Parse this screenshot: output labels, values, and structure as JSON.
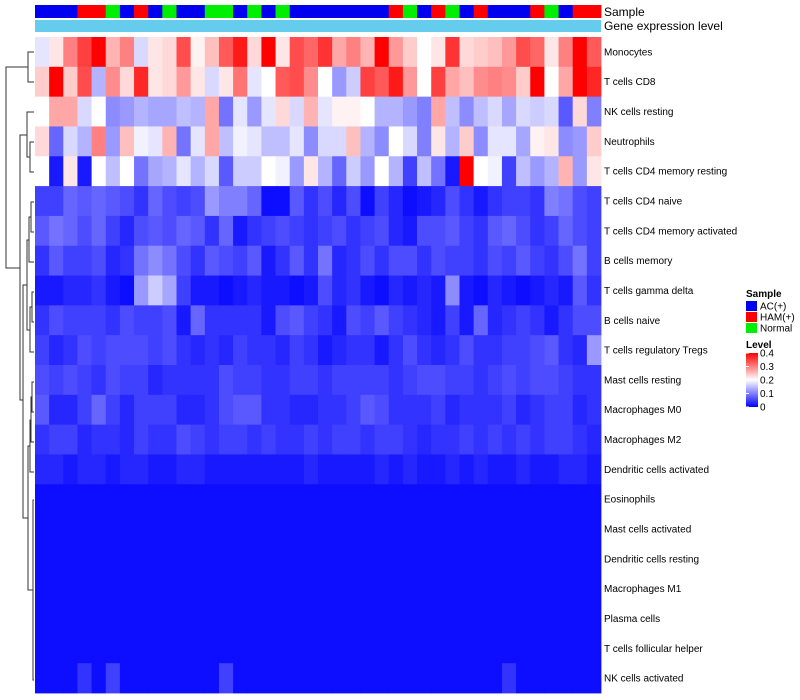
{
  "chart_data": {
    "type": "heatmap",
    "annotation_labels": {
      "sample": "Sample",
      "gene_expression": "Gene expression level"
    },
    "rows": [
      "Monocytes",
      "T cells CD8",
      "NK cells resting",
      "Neutrophils",
      "T cells CD4 memory resting",
      "T cells CD4 naive",
      "T cells CD4 memory activated",
      "B cells memory",
      "T cells gamma delta",
      "B cells naive",
      "T cells regulatory  Tregs",
      "Mast cells resting",
      "Macrophages M0",
      "Macrophages M2",
      "Dendritic cells activated",
      "Eosinophils",
      "Mast cells activated",
      "Dendritic cells resting",
      "Macrophages M1",
      "Plasma cells",
      "T cells follicular helper",
      "NK cells activated"
    ],
    "sample_groups": [
      "AC",
      "AC",
      "AC",
      "HAM",
      "HAM",
      "Normal",
      "AC",
      "HAM",
      "AC",
      "Normal",
      "AC",
      "AC",
      "Normal",
      "Normal",
      "AC",
      "Normal",
      "AC",
      "Normal",
      "AC",
      "AC",
      "AC",
      "AC",
      "AC",
      "AC",
      "AC",
      "HAM",
      "Normal",
      "AC",
      "HAM",
      "Normal",
      "AC",
      "HAM",
      "AC",
      "AC",
      "AC",
      "HAM",
      "Normal",
      "AC",
      "HAM",
      "HAM"
    ],
    "values": [
      [
        0.18,
        0.22,
        0.3,
        0.35,
        0.4,
        0.26,
        0.3,
        0.17,
        0.22,
        0.23,
        0.34,
        0.21,
        0.25,
        0.33,
        0.38,
        0.23,
        0.4,
        0.22,
        0.34,
        0.32,
        0.36,
        0.27,
        0.3,
        0.26,
        0.4,
        0.28,
        0.24,
        0.2,
        0.22,
        0.36,
        0.23,
        0.24,
        0.25,
        0.28,
        0.34,
        0.32,
        0.22,
        0.3,
        0.4,
        0.33
      ],
      [
        0.24,
        0.4,
        0.24,
        0.34,
        0.14,
        0.29,
        0.23,
        0.37,
        0.22,
        0.23,
        0.28,
        0.22,
        0.17,
        0.22,
        0.31,
        0.18,
        0.2,
        0.33,
        0.34,
        0.29,
        0.2,
        0.12,
        0.16,
        0.35,
        0.33,
        0.38,
        0.28,
        0.2,
        0.35,
        0.27,
        0.25,
        0.29,
        0.3,
        0.29,
        0.24,
        0.4,
        0.2,
        0.27,
        0.4,
        0.37
      ],
      [
        0.2,
        0.27,
        0.27,
        0.17,
        0.2,
        0.11,
        0.12,
        0.14,
        0.13,
        0.13,
        0.15,
        0.14,
        0.27,
        0.09,
        0.18,
        0.12,
        0.18,
        0.23,
        0.17,
        0.26,
        0.18,
        0.21,
        0.21,
        0.2,
        0.14,
        0.14,
        0.12,
        0.1,
        0.27,
        0.15,
        0.11,
        0.15,
        0.17,
        0.13,
        0.17,
        0.16,
        0.17,
        0.07,
        0.23,
        0.1
      ],
      [
        0.23,
        0.08,
        0.17,
        0.14,
        0.3,
        0.12,
        0.25,
        0.19,
        0.18,
        0.26,
        0.09,
        0.18,
        0.27,
        0.15,
        0.19,
        0.18,
        0.15,
        0.15,
        0.18,
        0.11,
        0.17,
        0.17,
        0.25,
        0.14,
        0.11,
        0.2,
        0.17,
        0.1,
        0.22,
        0.14,
        0.24,
        0.11,
        0.18,
        0.18,
        0.13,
        0.21,
        0.22,
        0.11,
        0.12,
        0.24
      ],
      [
        0.2,
        0.02,
        0.22,
        0.02,
        0.2,
        0.15,
        0.2,
        0.09,
        0.13,
        0.14,
        0.18,
        0.14,
        0.17,
        0.07,
        0.16,
        0.16,
        0.2,
        0.19,
        0.12,
        0.22,
        0.14,
        0.08,
        0.16,
        0.12,
        0.2,
        0.14,
        0.05,
        0.15,
        0.09,
        0.02,
        0.4,
        0.2,
        0.19,
        0.05,
        0.15,
        0.12,
        0.14,
        0.26,
        0.12,
        0.22
      ],
      [
        0.05,
        0.05,
        0.08,
        0.07,
        0.08,
        0.07,
        0.06,
        0.04,
        0.08,
        0.06,
        0.05,
        0.06,
        0.12,
        0.1,
        0.1,
        0.08,
        0.01,
        0.01,
        0.07,
        0.04,
        0.06,
        0.03,
        0.06,
        0.01,
        0.05,
        0.03,
        0.01,
        0.02,
        0.03,
        0.06,
        0.04,
        0.02,
        0.04,
        0.05,
        0.05,
        0.04,
        0.1,
        0.09,
        0.06,
        0.05
      ],
      [
        0.07,
        0.09,
        0.08,
        0.06,
        0.08,
        0.05,
        0.03,
        0.06,
        0.07,
        0.06,
        0.08,
        0.07,
        0.04,
        0.08,
        0.02,
        0.04,
        0.05,
        0.06,
        0.05,
        0.04,
        0.05,
        0.06,
        0.04,
        0.05,
        0.06,
        0.03,
        0.02,
        0.06,
        0.06,
        0.07,
        0.05,
        0.04,
        0.07,
        0.08,
        0.06,
        0.04,
        0.05,
        0.08,
        0.06,
        0.05
      ],
      [
        0.04,
        0.07,
        0.05,
        0.05,
        0.06,
        0.03,
        0.04,
        0.09,
        0.11,
        0.09,
        0.06,
        0.04,
        0.07,
        0.06,
        0.05,
        0.07,
        0.02,
        0.04,
        0.07,
        0.04,
        0.09,
        0.03,
        0.04,
        0.06,
        0.04,
        0.06,
        0.06,
        0.04,
        0.06,
        0.05,
        0.05,
        0.04,
        0.06,
        0.05,
        0.07,
        0.05,
        0.04,
        0.06,
        0.09,
        0.05
      ],
      [
        0.02,
        0.02,
        0.03,
        0.03,
        0.04,
        0.02,
        0.01,
        0.12,
        0.16,
        0.13,
        0.05,
        0.02,
        0.02,
        0.01,
        0.02,
        0.03,
        0.02,
        0.02,
        0.01,
        0.02,
        0.06,
        0.03,
        0.04,
        0.02,
        0.01,
        0.03,
        0.02,
        0.03,
        0.02,
        0.11,
        0.02,
        0.01,
        0.03,
        0.02,
        0.01,
        0.02,
        0.03,
        0.02,
        0.07,
        0.04
      ],
      [
        0.04,
        0.06,
        0.05,
        0.05,
        0.05,
        0.04,
        0.06,
        0.05,
        0.05,
        0.06,
        0.02,
        0.08,
        0.04,
        0.04,
        0.04,
        0.04,
        0.02,
        0.06,
        0.07,
        0.05,
        0.04,
        0.02,
        0.06,
        0.05,
        0.07,
        0.05,
        0.04,
        0.03,
        0.02,
        0.05,
        0.02,
        0.08,
        0.03,
        0.04,
        0.05,
        0.04,
        0.02,
        0.04,
        0.06,
        0.06
      ],
      [
        0.05,
        0.03,
        0.04,
        0.06,
        0.05,
        0.06,
        0.06,
        0.06,
        0.05,
        0.06,
        0.04,
        0.03,
        0.04,
        0.03,
        0.05,
        0.04,
        0.04,
        0.03,
        0.05,
        0.04,
        0.02,
        0.03,
        0.04,
        0.04,
        0.02,
        0.04,
        0.06,
        0.04,
        0.03,
        0.04,
        0.06,
        0.04,
        0.04,
        0.05,
        0.05,
        0.06,
        0.07,
        0.04,
        0.03,
        0.12
      ],
      [
        0.06,
        0.05,
        0.06,
        0.05,
        0.04,
        0.06,
        0.05,
        0.05,
        0.03,
        0.04,
        0.04,
        0.04,
        0.04,
        0.06,
        0.05,
        0.05,
        0.04,
        0.04,
        0.05,
        0.05,
        0.04,
        0.05,
        0.05,
        0.05,
        0.05,
        0.04,
        0.05,
        0.06,
        0.06,
        0.05,
        0.05,
        0.04,
        0.05,
        0.06,
        0.05,
        0.06,
        0.06,
        0.05,
        0.04,
        0.04
      ],
      [
        0.07,
        0.03,
        0.03,
        0.05,
        0.08,
        0.05,
        0.03,
        0.05,
        0.05,
        0.05,
        0.03,
        0.03,
        0.04,
        0.06,
        0.07,
        0.07,
        0.04,
        0.04,
        0.03,
        0.03,
        0.04,
        0.04,
        0.05,
        0.07,
        0.06,
        0.04,
        0.04,
        0.04,
        0.05,
        0.03,
        0.04,
        0.04,
        0.04,
        0.05,
        0.03,
        0.04,
        0.05,
        0.05,
        0.03,
        0.04
      ],
      [
        0.04,
        0.05,
        0.05,
        0.03,
        0.04,
        0.04,
        0.03,
        0.05,
        0.04,
        0.04,
        0.06,
        0.05,
        0.04,
        0.05,
        0.05,
        0.04,
        0.05,
        0.04,
        0.04,
        0.05,
        0.04,
        0.05,
        0.05,
        0.04,
        0.05,
        0.05,
        0.04,
        0.03,
        0.04,
        0.04,
        0.05,
        0.04,
        0.05,
        0.04,
        0.05,
        0.04,
        0.05,
        0.05,
        0.04,
        0.03
      ],
      [
        0.03,
        0.03,
        0.02,
        0.03,
        0.03,
        0.02,
        0.03,
        0.03,
        0.02,
        0.02,
        0.03,
        0.03,
        0.02,
        0.02,
        0.02,
        0.02,
        0.02,
        0.02,
        0.02,
        0.03,
        0.02,
        0.02,
        0.02,
        0.02,
        0.03,
        0.02,
        0.03,
        0.02,
        0.02,
        0.03,
        0.02,
        0.03,
        0.02,
        0.02,
        0.03,
        0.02,
        0.02,
        0.03,
        0.03,
        0.02
      ],
      [
        0.01,
        0.01,
        0.01,
        0.01,
        0.01,
        0.01,
        0.01,
        0.01,
        0.01,
        0.01,
        0.01,
        0.01,
        0.01,
        0.01,
        0.01,
        0.01,
        0.01,
        0.01,
        0.01,
        0.01,
        0.01,
        0.01,
        0.01,
        0.01,
        0.01,
        0.01,
        0.01,
        0.01,
        0.01,
        0.01,
        0.01,
        0.01,
        0.01,
        0.01,
        0.01,
        0.01,
        0.01,
        0.01,
        0.01,
        0.01
      ],
      [
        0.01,
        0.01,
        0.01,
        0.01,
        0.01,
        0.01,
        0.01,
        0.01,
        0.01,
        0.01,
        0.01,
        0.01,
        0.01,
        0.01,
        0.01,
        0.01,
        0.01,
        0.01,
        0.01,
        0.01,
        0.01,
        0.01,
        0.01,
        0.01,
        0.01,
        0.01,
        0.01,
        0.01,
        0.01,
        0.01,
        0.01,
        0.01,
        0.01,
        0.01,
        0.01,
        0.01,
        0.01,
        0.01,
        0.01,
        0.01
      ],
      [
        0.01,
        0.01,
        0.01,
        0.01,
        0.01,
        0.01,
        0.01,
        0.01,
        0.01,
        0.01,
        0.01,
        0.01,
        0.01,
        0.01,
        0.01,
        0.01,
        0.01,
        0.01,
        0.01,
        0.01,
        0.01,
        0.01,
        0.01,
        0.01,
        0.01,
        0.01,
        0.01,
        0.01,
        0.01,
        0.01,
        0.01,
        0.01,
        0.01,
        0.01,
        0.01,
        0.01,
        0.01,
        0.01,
        0.01,
        0.01
      ],
      [
        0.01,
        0.01,
        0.01,
        0.01,
        0.01,
        0.01,
        0.01,
        0.01,
        0.01,
        0.01,
        0.01,
        0.01,
        0.01,
        0.01,
        0.01,
        0.01,
        0.01,
        0.01,
        0.01,
        0.01,
        0.01,
        0.01,
        0.01,
        0.01,
        0.01,
        0.01,
        0.01,
        0.01,
        0.01,
        0.01,
        0.01,
        0.01,
        0.01,
        0.01,
        0.01,
        0.01,
        0.01,
        0.01,
        0.01,
        0.01
      ],
      [
        0.01,
        0.01,
        0.01,
        0.01,
        0.01,
        0.01,
        0.01,
        0.01,
        0.01,
        0.01,
        0.01,
        0.01,
        0.01,
        0.01,
        0.01,
        0.01,
        0.01,
        0.01,
        0.01,
        0.01,
        0.01,
        0.01,
        0.01,
        0.01,
        0.01,
        0.01,
        0.01,
        0.01,
        0.01,
        0.01,
        0.01,
        0.01,
        0.01,
        0.01,
        0.01,
        0.01,
        0.01,
        0.01,
        0.01,
        0.01
      ],
      [
        0.01,
        0.01,
        0.01,
        0.01,
        0.01,
        0.01,
        0.01,
        0.01,
        0.01,
        0.01,
        0.01,
        0.01,
        0.01,
        0.01,
        0.01,
        0.01,
        0.01,
        0.01,
        0.01,
        0.01,
        0.01,
        0.01,
        0.01,
        0.01,
        0.01,
        0.01,
        0.01,
        0.01,
        0.01,
        0.01,
        0.01,
        0.01,
        0.01,
        0.01,
        0.01,
        0.01,
        0.01,
        0.01,
        0.01,
        0.01
      ],
      [
        0.01,
        0.01,
        0.01,
        0.04,
        0.01,
        0.05,
        0.01,
        0.01,
        0.01,
        0.01,
        0.01,
        0.01,
        0.01,
        0.05,
        0.01,
        0.01,
        0.01,
        0.01,
        0.01,
        0.01,
        0.01,
        0.01,
        0.01,
        0.01,
        0.01,
        0.01,
        0.01,
        0.01,
        0.01,
        0.01,
        0.01,
        0.01,
        0.01,
        0.04,
        0.01,
        0.01,
        0.01,
        0.01,
        0.01,
        0.01
      ]
    ],
    "legend": {
      "sample_title": "Sample",
      "sample_entries": [
        {
          "key": "AC",
          "label": "AC(+)",
          "color": "#0000ee"
        },
        {
          "key": "HAM",
          "label": "HAM(+)",
          "color": "#ff0000"
        },
        {
          "key": "Normal",
          "label": "Normal",
          "color": "#00ee00"
        }
      ],
      "level_title": "Level",
      "level_ticks": [
        "0.4",
        "0.3",
        "0.2",
        "0.1",
        "0"
      ],
      "level_values": [
        0.4,
        0.3,
        0.2,
        0.1,
        0
      ],
      "range": [
        0,
        0.4
      ]
    },
    "colors": {
      "low": "#0000ff",
      "mid": "#ffffff",
      "high": "#ff0000",
      "gene_expression_bar": "#66ccee"
    }
  }
}
